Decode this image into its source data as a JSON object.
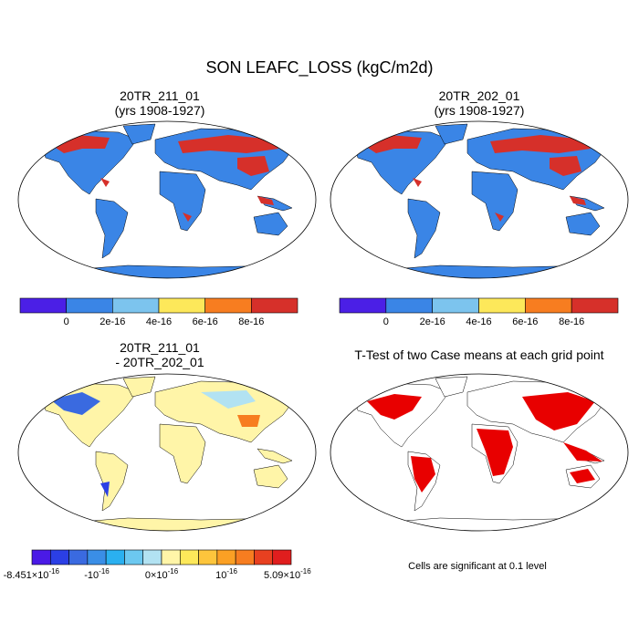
{
  "title": "SON LEAFC_LOSS (kgC/m2d)",
  "panels": [
    {
      "title": [
        "20TR_211_01",
        "(yrs 1908-1927)"
      ],
      "colorbar": {
        "colors": [
          "#4b1fe6",
          "#3a85e6",
          "#7cc4ee",
          "#fde85a",
          "#f77d20",
          "#d6302a"
        ],
        "labels": [
          "0",
          "2e-16",
          "4e-16",
          "6e-16",
          "8e-16"
        ]
      }
    },
    {
      "title": [
        "20TR_202_01",
        "(yrs 1908-1927)"
      ],
      "colorbar": {
        "colors": [
          "#4b1fe6",
          "#3a85e6",
          "#7cc4ee",
          "#fde85a",
          "#f77d20",
          "#d6302a"
        ],
        "labels": [
          "0",
          "2e-16",
          "4e-16",
          "6e-16",
          "8e-16"
        ]
      }
    },
    {
      "title": [
        "20TR_211_01",
        "- 20TR_202_01"
      ],
      "colorbar": {
        "colors": [
          "#4a1ae6",
          "#2b3fe5",
          "#3a6ae0",
          "#3a8ee6",
          "#2ab0f0",
          "#6cc8f0",
          "#b2e2f2",
          "#fff5a8",
          "#fde85a",
          "#fdc53c",
          "#fba024",
          "#f77d20",
          "#e84020",
          "#e01e1e"
        ],
        "labels": [
          {
            "base": "-8.451×10",
            "exp": "-16"
          },
          {
            "base": "-10",
            "exp": "-16"
          },
          {
            "base": "0×10",
            "exp": "-16"
          },
          {
            "base": "10",
            "exp": "-16"
          },
          {
            "base": "5.09×10",
            "exp": "-16"
          }
        ]
      }
    },
    {
      "title": [
        "T-Test of two Case means at each grid point"
      ],
      "note": "Cells are significant at 0.1 level"
    }
  ]
}
